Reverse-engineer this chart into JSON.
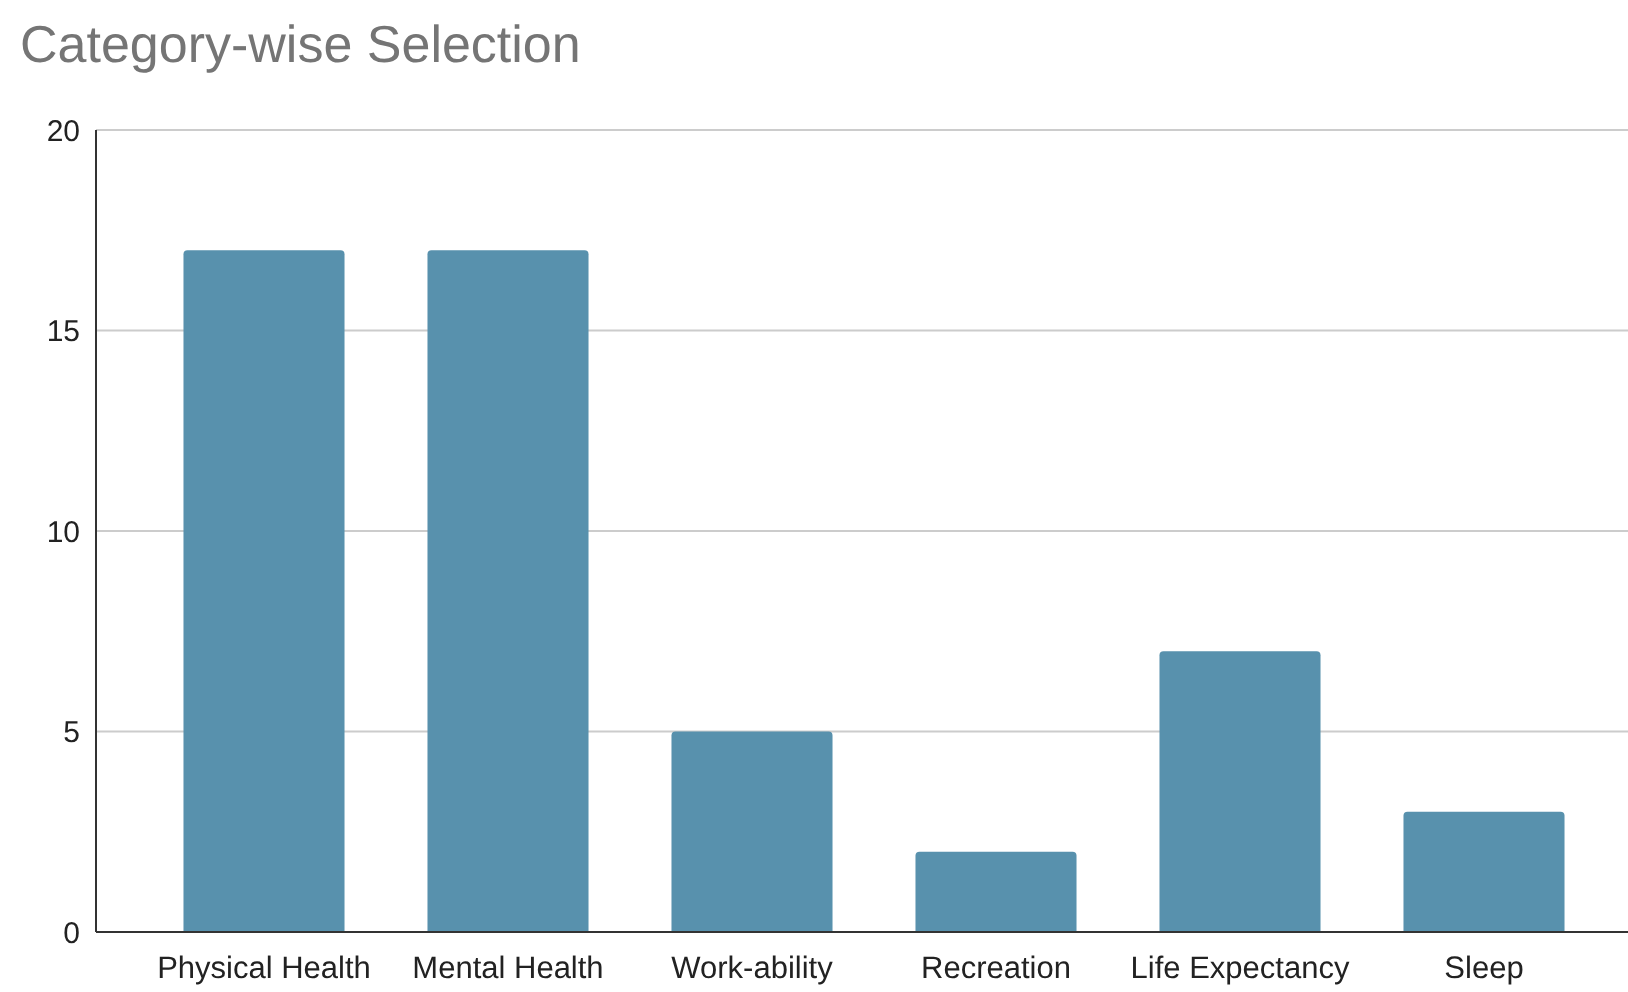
{
  "chart_data": {
    "type": "bar",
    "title": "Category-wise Selection",
    "categories": [
      "Physical Health",
      "Mental Health",
      "Work-ability",
      "Recreation",
      "Life Expectancy",
      "Sleep"
    ],
    "values": [
      17,
      17,
      5,
      2,
      7,
      3
    ],
    "color": "#5891ad",
    "ylim": [
      0,
      20
    ],
    "yticks": [
      0,
      5,
      10,
      15,
      20
    ],
    "grid": "y"
  }
}
